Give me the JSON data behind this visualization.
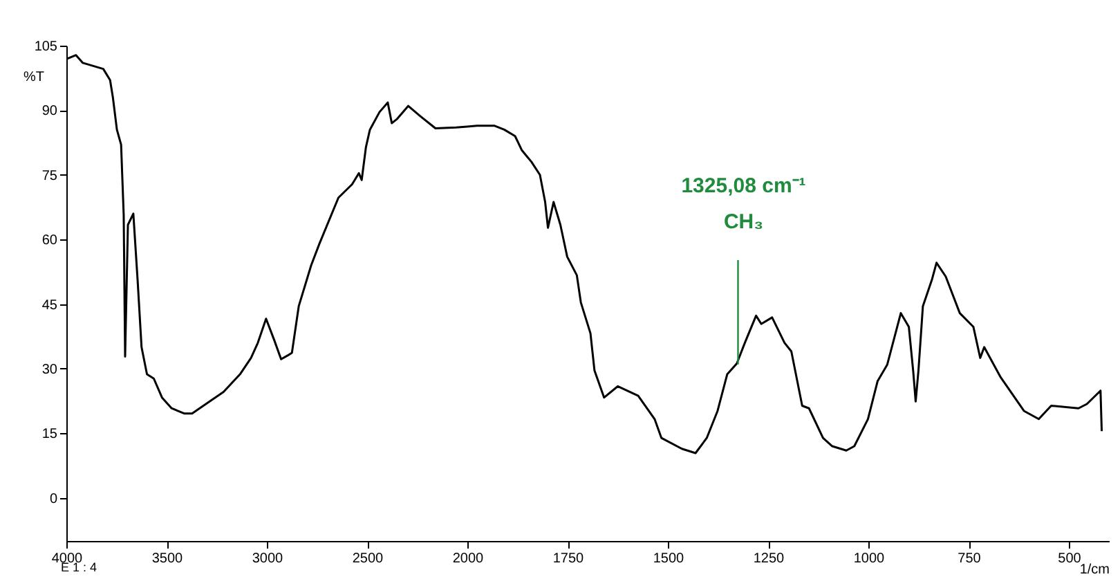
{
  "chart_data": [
    {
      "type": "line",
      "ylabel": "%T",
      "x": [
        4000,
        3952,
        3918,
        3816,
        3782,
        3768,
        3748,
        3727,
        3714,
        3707,
        3693,
        3666,
        3645,
        3625,
        3598,
        3564,
        3523,
        3475,
        3413,
        3373,
        3304,
        3216,
        3134,
        3079,
        3045,
        3004,
        2963,
        2929,
        2895,
        2875,
        2841,
        2779,
        2738,
        2643,
        2575,
        2541,
        2527,
        2506,
        2486,
        2438,
        2397,
        2377,
        2350,
        2295,
        2234,
        2159,
        2056,
        2000
      ],
      "series": [
        {
          "color": "#000000",
          "values": [
            101.9,
            102.8,
            101,
            99.6,
            97,
            93,
            85.5,
            82,
            65.6,
            32.8,
            63.4,
            66,
            50.8,
            35,
            28.7,
            27.7,
            23.3,
            20.8,
            19.6,
            19.6,
            21.8,
            24.6,
            28.7,
            32.5,
            36,
            41.6,
            36.6,
            32.2,
            33.1,
            33.7,
            44.5,
            54,
            59,
            69.7,
            72.8,
            75.4,
            73.8,
            81.4,
            85.5,
            89.6,
            91.8,
            87,
            88,
            91,
            88.6,
            85.8,
            86,
            86.2
          ]
        }
      ],
      "xlim": [
        4000,
        2000
      ],
      "xticks": [
        4000,
        3500,
        3000,
        2500,
        2000
      ],
      "ylim": [
        -10,
        105
      ],
      "yticks": [
        0,
        15,
        30,
        45,
        60,
        75,
        90,
        105
      ],
      "line_style": "solid",
      "grid": false,
      "marker": "none",
      "annotations": [
        "E 1 : 4"
      ]
    },
    {
      "type": "line",
      "xlabel": "1/cm",
      "x": [
        2000,
        1976,
        1932,
        1908,
        1881,
        1864,
        1840,
        1819,
        1806,
        1799,
        1785,
        1768,
        1751,
        1727,
        1717,
        1693,
        1683,
        1659,
        1625,
        1574,
        1533,
        1516,
        1465,
        1431,
        1403,
        1376,
        1352,
        1328,
        1308,
        1280,
        1267,
        1240,
        1209,
        1192,
        1165,
        1148,
        1113,
        1090,
        1055,
        1035,
        1001,
        977,
        953,
        919,
        899,
        888,
        882,
        875,
        864,
        841,
        830,
        807,
        772,
        738,
        721,
        711,
        670,
        612,
        575,
        544,
        476,
        455,
        421,
        418
      ],
      "series": [
        {
          "color": "#000000",
          "values": [
            86.2,
            86.4,
            86.4,
            85.5,
            84,
            80.7,
            78,
            75,
            68.7,
            62.7,
            68.7,
            63.4,
            56,
            51.7,
            45.4,
            38.2,
            29.6,
            23.3,
            25.9,
            23.7,
            18.3,
            13.9,
            11.4,
            10.4,
            13.9,
            20.2,
            28.7,
            31.2,
            36,
            42.3,
            40.4,
            41.9,
            36,
            34,
            21.4,
            20.8,
            13.9,
            12,
            11,
            12,
            18.3,
            27.1,
            30.9,
            42.9,
            39.7,
            29.3,
            22.4,
            29.6,
            44.5,
            50.8,
            54.6,
            51.4,
            42.9,
            39.7,
            32.5,
            35,
            28,
            20.2,
            18.3,
            21.4,
            20.8,
            21.8,
            24.9,
            15.5
          ]
        }
      ],
      "xlim": [
        2000,
        400
      ],
      "xticks": [
        1750,
        1500,
        1250,
        1000,
        750,
        500
      ],
      "ylim": [
        -10,
        105
      ],
      "yticks": [
        0,
        15,
        30,
        45,
        60,
        75,
        90,
        105
      ],
      "tick_labels": "x",
      "line_style": "solid",
      "grid": false,
      "marker": "none",
      "annotations": [
        {
          "text": "1325,08 cm⁻¹\nCH₃",
          "x": 1325,
          "y": 31
        }
      ]
    }
  ]
}
